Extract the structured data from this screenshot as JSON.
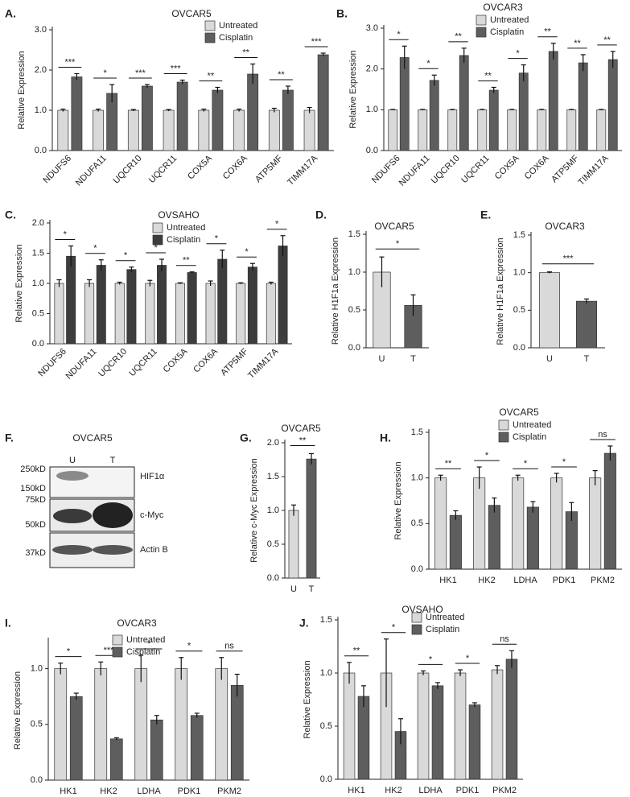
{
  "chart_data": [
    {
      "type": "bar",
      "panel_label": "A.",
      "title": "OVCAR5",
      "ylabel": "Relative Expression",
      "categories": [
        "NDUFS6",
        "NDUFA11",
        "UQCR10",
        "UQCR11",
        "COX5A",
        "COX6A",
        "ATP5MF",
        "TIMM17A"
      ],
      "series": [
        {
          "name": "Untreated",
          "color": "#d9d9d9",
          "values": [
            1.0,
            1.0,
            1.0,
            1.0,
            1.0,
            1.0,
            1.0,
            1.0
          ],
          "errors": [
            0.03,
            0.03,
            0.02,
            0.02,
            0.03,
            0.03,
            0.05,
            0.07
          ]
        },
        {
          "name": "Cisplatin",
          "color": "#5e5e5e",
          "values": [
            1.83,
            1.42,
            1.6,
            1.7,
            1.5,
            1.9,
            1.5,
            2.38
          ],
          "errors": [
            0.08,
            0.22,
            0.04,
            0.05,
            0.07,
            0.25,
            0.1,
            0.04
          ]
        }
      ],
      "annotations": [
        "***",
        "*",
        "***",
        "***",
        "**",
        "**",
        "**",
        "***"
      ],
      "ylim": [
        0,
        3
      ],
      "yticks": [
        {
          "value": 0,
          "label": "0.0"
        },
        {
          "value": 1,
          "label": "1.0"
        },
        {
          "value": 2,
          "label": "2.0"
        },
        {
          "value": 3,
          "label": "3.0"
        }
      ]
    },
    {
      "type": "bar",
      "panel_label": "B.",
      "title": "OVCAR3",
      "ylabel": "Relative Expression",
      "categories": [
        "NDUFS6",
        "NDUFA11",
        "UQCR10",
        "UQCR11",
        "COX5A",
        "COX6A",
        "ATP5MF",
        "TIMM17A"
      ],
      "series": [
        {
          "name": "Untreated",
          "color": "#d9d9d9",
          "values": [
            1.0,
            1.0,
            1.0,
            1.0,
            1.0,
            1.0,
            1.0,
            1.0
          ],
          "errors": [
            0.01,
            0.01,
            0.01,
            0.01,
            0.01,
            0.01,
            0.01,
            0.01
          ]
        },
        {
          "name": "Cisplatin",
          "color": "#5e5e5e",
          "values": [
            2.28,
            1.72,
            2.33,
            1.48,
            1.9,
            2.43,
            2.15,
            2.23
          ],
          "errors": [
            0.28,
            0.13,
            0.18,
            0.07,
            0.2,
            0.2,
            0.2,
            0.2
          ]
        }
      ],
      "annotations": [
        "*",
        "*",
        "**",
        "**",
        "*",
        "**",
        "**",
        "**"
      ],
      "ylim": [
        0,
        3
      ],
      "yticks": [
        {
          "value": 0,
          "label": "0.0"
        },
        {
          "value": 1,
          "label": "1.0"
        },
        {
          "value": 2,
          "label": "2.0"
        },
        {
          "value": 3,
          "label": "3.0"
        }
      ]
    },
    {
      "type": "bar",
      "panel_label": "C.",
      "title": "OVSAHO",
      "ylabel": "Relative Expression",
      "categories": [
        "NDUFS6",
        "NDUFA11",
        "UQCR10",
        "UQCR11",
        "COX5A",
        "COX6A",
        "ATP5MF",
        "TIMM17A"
      ],
      "series": [
        {
          "name": "Untreated",
          "color": "#d9d9d9",
          "values": [
            1.0,
            1.0,
            1.0,
            1.0,
            1.0,
            1.0,
            1.0,
            1.0
          ],
          "errors": [
            0.06,
            0.06,
            0.02,
            0.05,
            0.01,
            0.04,
            0.01,
            0.02
          ]
        },
        {
          "name": "Cisplatin",
          "color": "#3d3d3d",
          "values": [
            1.45,
            1.3,
            1.23,
            1.3,
            1.18,
            1.4,
            1.27,
            1.62
          ],
          "errors": [
            0.17,
            0.09,
            0.04,
            0.1,
            0.01,
            0.15,
            0.06,
            0.17
          ]
        }
      ],
      "annotations": [
        "*",
        "*",
        "*",
        "*",
        "**",
        "*",
        "*",
        "*"
      ],
      "ylim": [
        0,
        2
      ],
      "yticks": [
        {
          "value": 0,
          "label": "0.0"
        },
        {
          "value": 0.5,
          "label": "0.5"
        },
        {
          "value": 1,
          "label": "1.0"
        },
        {
          "value": 1.5,
          "label": "1.5"
        },
        {
          "value": 2,
          "label": "2.0"
        }
      ]
    },
    {
      "type": "bar",
      "panel_label": "D.",
      "title": "OVCAR5",
      "ylabel": "Relative  H1F1a  Expression",
      "categories": [
        "U",
        "T"
      ],
      "values": [
        1.0,
        0.56
      ],
      "errors": [
        0.2,
        0.14
      ],
      "colors": [
        "#d9d9d9",
        "#5e5e5e"
      ],
      "annotations": [
        "*"
      ],
      "ylim": [
        0,
        1.5
      ],
      "yticks": [
        {
          "value": 0,
          "label": "0.0"
        },
        {
          "value": 0.5,
          "label": "0.5"
        },
        {
          "value": 1,
          "label": "1.0"
        },
        {
          "value": 1.5,
          "label": "1.5"
        }
      ]
    },
    {
      "type": "bar",
      "panel_label": "E.",
      "title": "OVCAR3",
      "ylabel": "Relative  H1F1a  Expression",
      "categories": [
        "U",
        "T"
      ],
      "values": [
        1.0,
        0.62
      ],
      "errors": [
        0.01,
        0.03
      ],
      "colors": [
        "#d9d9d9",
        "#5e5e5e"
      ],
      "annotations": [
        "***"
      ],
      "ylim": [
        0,
        1.5
      ],
      "yticks": [
        {
          "value": 0,
          "label": "0.0"
        },
        {
          "value": 0.5,
          "label": "0.5"
        },
        {
          "value": 1,
          "label": "1.0"
        },
        {
          "value": 1.5,
          "label": "1.5"
        }
      ]
    },
    {
      "type": "bar",
      "panel_label": "G.",
      "title": "OVCAR5",
      "ylabel": "Relative  c-Myc  Expression",
      "categories": [
        "U",
        "T"
      ],
      "values": [
        1.0,
        1.76
      ],
      "errors": [
        0.08,
        0.08
      ],
      "colors": [
        "#d9d9d9",
        "#5e5e5e"
      ],
      "annotations": [
        "**"
      ],
      "ylim": [
        0,
        2
      ],
      "yticks": [
        {
          "value": 0,
          "label": "0.0"
        },
        {
          "value": 0.5,
          "label": "0.5"
        },
        {
          "value": 1,
          "label": "1.0"
        },
        {
          "value": 1.5,
          "label": "1.5"
        },
        {
          "value": 2,
          "label": "2.0"
        }
      ]
    },
    {
      "type": "bar",
      "panel_label": "H.",
      "title": "OVCAR5",
      "ylabel": "Relative Expression",
      "categories": [
        "HK1",
        "HK2",
        "LDHA",
        "PDK1",
        "PKM2"
      ],
      "series": [
        {
          "name": "Untreated",
          "color": "#d9d9d9",
          "values": [
            1.0,
            1.0,
            1.0,
            1.0,
            1.0
          ],
          "errors": [
            0.03,
            0.12,
            0.03,
            0.05,
            0.08
          ]
        },
        {
          "name": "Cisplatin",
          "color": "#5e5e5e",
          "values": [
            0.59,
            0.7,
            0.68,
            0.63,
            1.27
          ],
          "errors": [
            0.05,
            0.08,
            0.06,
            0.1,
            0.08
          ]
        }
      ],
      "annotations": [
        "**",
        "*",
        "*",
        "*",
        "ns"
      ],
      "ylim": [
        0,
        1.5
      ],
      "yticks": [
        {
          "value": 0,
          "label": "0.0"
        },
        {
          "value": 0.5,
          "label": "0.5"
        },
        {
          "value": 1,
          "label": "1.0"
        },
        {
          "value": 1.5,
          "label": "1.5"
        }
      ]
    },
    {
      "type": "bar",
      "panel_label": "I.",
      "title": "OVCAR3",
      "ylabel": "Relative Expression",
      "categories": [
        "HK1",
        "HK2",
        "LDHA",
        "PDK1",
        "PKM2"
      ],
      "series": [
        {
          "name": "Untreated",
          "color": "#d9d9d9",
          "values": [
            1.0,
            1.0,
            1.0,
            1.0,
            1.0
          ],
          "errors": [
            0.05,
            0.06,
            0.12,
            0.1,
            0.1
          ]
        },
        {
          "name": "Cisplatin",
          "color": "#5e5e5e",
          "values": [
            0.75,
            0.37,
            0.54,
            0.58,
            0.85
          ],
          "errors": [
            0.03,
            0.01,
            0.04,
            0.02,
            0.1
          ]
        }
      ],
      "annotations": [
        "*",
        "***",
        "*",
        "*",
        "ns"
      ],
      "ylim": [
        0,
        1.25
      ],
      "yticks": [
        {
          "value": 0,
          "label": "0.0"
        },
        {
          "value": 0.5,
          "label": "0.5"
        },
        {
          "value": 1,
          "label": "1.0"
        }
      ]
    },
    {
      "type": "bar",
      "panel_label": "J.",
      "title": "OVSAHO",
      "ylabel": "Relative Expression",
      "categories": [
        "HK1",
        "HK2",
        "LDHA",
        "PDK1",
        "PKM2"
      ],
      "series": [
        {
          "name": "Untreated",
          "color": "#d9d9d9",
          "values": [
            1.0,
            1.0,
            1.0,
            1.0,
            1.03
          ],
          "errors": [
            0.1,
            0.32,
            0.02,
            0.03,
            0.04
          ]
        },
        {
          "name": "Cisplatin",
          "color": "#5e5e5e",
          "values": [
            0.78,
            0.45,
            0.88,
            0.7,
            1.13
          ],
          "errors": [
            0.1,
            0.12,
            0.03,
            0.02,
            0.08
          ]
        }
      ],
      "annotations": [
        "**",
        "*",
        "*",
        "*",
        "ns"
      ],
      "ylim": [
        0,
        1.5
      ],
      "yticks": [
        {
          "value": 0,
          "label": "0.0"
        },
        {
          "value": 0.5,
          "label": "0.5"
        },
        {
          "value": 1,
          "label": "1.0"
        },
        {
          "value": 1.5,
          "label": "1.5"
        }
      ]
    }
  ],
  "blot": {
    "panel_label": "F.",
    "title": "OVCAR5",
    "lanes": [
      "U",
      "T"
    ],
    "markers": [
      "250kD",
      "150kD",
      "75kD",
      "50kD",
      "37kD"
    ],
    "bands": [
      "HIF1α",
      "c-Myc",
      "Actin B"
    ]
  }
}
